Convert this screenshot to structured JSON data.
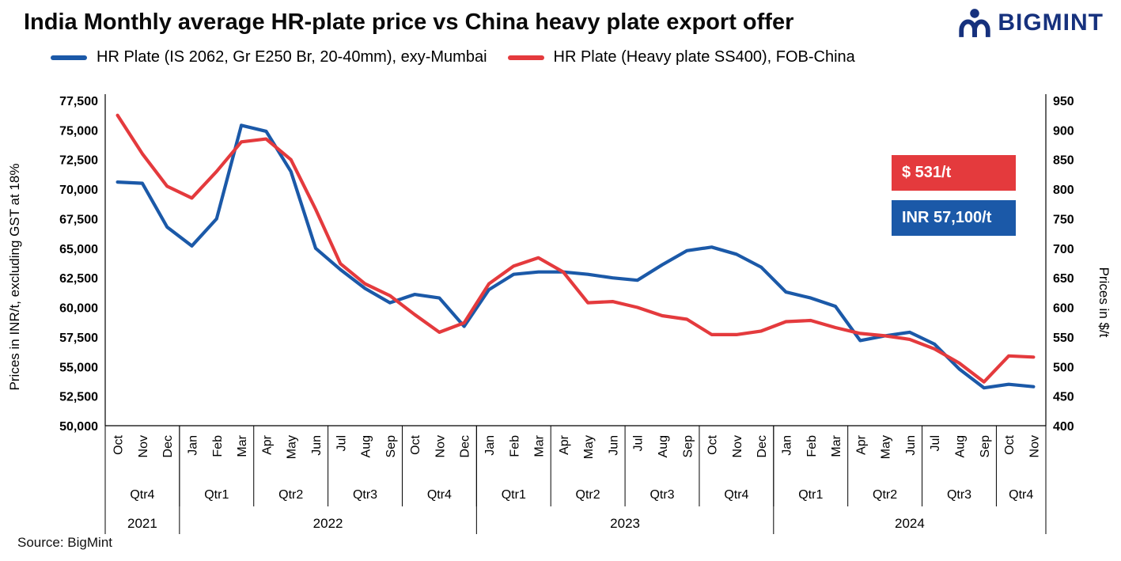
{
  "page": {
    "title": "India Monthly average HR-plate price vs China heavy plate export offer",
    "brand": "BIGMINT",
    "brand_color": "#16317d",
    "source": "Source: BigMint"
  },
  "legend": [
    {
      "label": "HR Plate (IS 2062, Gr E250 Br, 20-40mm), exy-Mumbai",
      "color": "#1b59a8"
    },
    {
      "label": "HR Plate (Heavy plate SS400), FOB-China",
      "color": "#e43a3d"
    }
  ],
  "callouts": [
    {
      "label": "$ 531/t",
      "color": "#e43a3d"
    },
    {
      "label": "INR 57,100/t",
      "color": "#1b59a8"
    }
  ],
  "chart_data": {
    "type": "line",
    "title": "India Monthly average HR-plate price vs China heavy plate export offer",
    "grid": false,
    "legend_position": "top",
    "x": [
      "Oct",
      "Nov",
      "Dec",
      "Jan",
      "Feb",
      "Mar",
      "Apr",
      "May",
      "Jun",
      "Jul",
      "Aug",
      "Sep",
      "Oct",
      "Nov",
      "Dec",
      "Jan",
      "Feb",
      "Mar",
      "Apr",
      "May",
      "Jun",
      "Jul",
      "Aug",
      "Sep",
      "Oct",
      "Nov",
      "Dec",
      "Jan",
      "Feb",
      "Mar",
      "Apr",
      "May",
      "Jun",
      "Jul",
      "Aug",
      "Sep",
      "Oct",
      "Nov"
    ],
    "quarters": [
      {
        "label": "Qtr4",
        "months": 3
      },
      {
        "label": "Qtr1",
        "months": 3
      },
      {
        "label": "Qtr2",
        "months": 3
      },
      {
        "label": "Qtr3",
        "months": 3
      },
      {
        "label": "Qtr4",
        "months": 3
      },
      {
        "label": "Qtr1",
        "months": 3
      },
      {
        "label": "Qtr2",
        "months": 3
      },
      {
        "label": "Qtr3",
        "months": 3
      },
      {
        "label": "Qtr4",
        "months": 3
      },
      {
        "label": "Qtr1",
        "months": 3
      },
      {
        "label": "Qtr2",
        "months": 3
      },
      {
        "label": "Qtr3",
        "months": 3
      },
      {
        "label": "Qtr4",
        "months": 2
      }
    ],
    "years": [
      {
        "label": "2021",
        "months": 3
      },
      {
        "label": "2022",
        "months": 12
      },
      {
        "label": "2023",
        "months": 12
      },
      {
        "label": "2024",
        "months": 11
      }
    ],
    "left_axis": {
      "label": "Prices in INR/t, excluding GST at 18%",
      "min": 50000,
      "max": 77500,
      "step": 2500
    },
    "right_axis": {
      "label": "Prices in $/t",
      "min": 400,
      "max": 950,
      "step": 50
    },
    "series": [
      {
        "key": "india",
        "name": "HR Plate (IS 2062, Gr E250 Br, 20-40mm), exy-Mumbai",
        "axis": "left",
        "unit": "INR/t",
        "color": "#1b59a8",
        "values": [
          70600,
          70500,
          66800,
          65200,
          67500,
          75400,
          74900,
          71500,
          65000,
          63200,
          61600,
          60400,
          61100,
          60800,
          58400,
          61500,
          62800,
          63000,
          63000,
          62800,
          62500,
          62300,
          63600,
          64800,
          65100,
          64500,
          63400,
          61300,
          60800,
          60100,
          57200,
          57600,
          57900,
          56900,
          54800,
          53200,
          53500,
          53300
        ]
      },
      {
        "key": "china",
        "name": "HR Plate (Heavy plate SS400), FOB-China",
        "axis": "right",
        "unit": "$/t",
        "color": "#e43a3d",
        "values": [
          925,
          860,
          805,
          785,
          830,
          880,
          885,
          850,
          766,
          674,
          640,
          620,
          588,
          558,
          574,
          640,
          670,
          684,
          660,
          608,
          610,
          600,
          586,
          580,
          554,
          554,
          560,
          576,
          578,
          566,
          556,
          552,
          546,
          530,
          506,
          474,
          518,
          516
        ]
      }
    ]
  }
}
